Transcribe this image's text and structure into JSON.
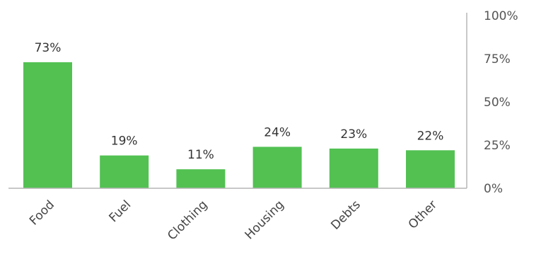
{
  "chart_data": {
    "type": "bar",
    "categories": [
      "Food",
      "Fuel",
      "Clothing",
      "Housing",
      "Debts",
      "Other"
    ],
    "values": [
      73,
      19,
      11,
      24,
      23,
      22
    ],
    "data_labels": [
      "73%",
      "19%",
      "11%",
      "24%",
      "23%",
      "22%"
    ],
    "ylim": [
      0,
      100
    ],
    "y_ticks": [
      0,
      25,
      50,
      75,
      100
    ],
    "y_tick_labels": [
      "0%",
      "25%",
      "50%",
      "75%",
      "100%"
    ],
    "y_axis_position": "right",
    "grid": false,
    "legend": "none",
    "bar_color": "#52c152",
    "axis_color": "#b5b5b5"
  }
}
